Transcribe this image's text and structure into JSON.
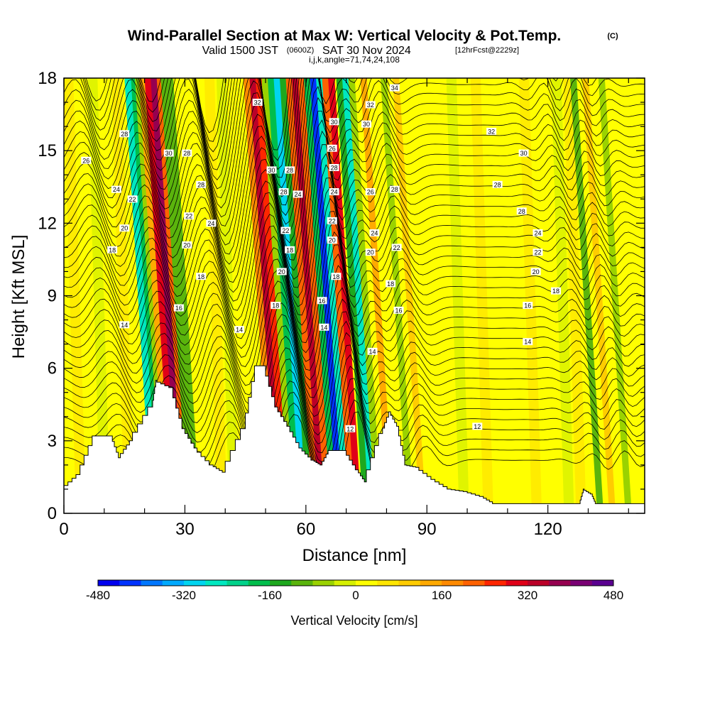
{
  "header": {
    "title": "Wind-Parallel Section at Max W: Vertical Velocity & Pot.Temp.",
    "title_mark": "(C)",
    "valid_prefix": "Valid 1500 JST",
    "valid_utc": "(0600Z)",
    "valid_date": "SAT 30 Nov 2024",
    "forecast_info": "[12hrFcst@2229z]",
    "indices": "i,j,k,angle=71,74,24,108"
  },
  "chart_data": {
    "type": "heatmap",
    "xlabel": "Distance [nm]",
    "ylabel": "Height [Kft MSL]",
    "xlim": [
      0,
      144
    ],
    "ylim": [
      0,
      18
    ],
    "x_ticks": [
      "0",
      "30",
      "60",
      "90",
      "120"
    ],
    "y_ticks": [
      "0",
      "3",
      "6",
      "9",
      "12",
      "15",
      "18"
    ],
    "colorbar": {
      "title": "Vertical Velocity [cm/s]",
      "tick_labels": [
        "-480",
        "-320",
        "-160",
        "0",
        "160",
        "320",
        "480"
      ],
      "range": [
        -480,
        480
      ],
      "colors": [
        "#0000ee",
        "#0033ff",
        "#0077ff",
        "#00aaff",
        "#00d5f0",
        "#00e8c0",
        "#00d28a",
        "#00be4c",
        "#1ea81e",
        "#5ab40c",
        "#9ad200",
        "#d6f000",
        "#ffff00",
        "#ffe600",
        "#ffcc00",
        "#ffaa00",
        "#ff8a00",
        "#ff6200",
        "#ff2600",
        "#e00018",
        "#bb0028",
        "#960050",
        "#7a0074",
        "#5a0090"
      ]
    },
    "terrain_height_kft": [
      {
        "x": 0,
        "h": 1.0
      },
      {
        "x": 4,
        "h": 1.6
      },
      {
        "x": 8,
        "h": 3.2
      },
      {
        "x": 12,
        "h": 3.2
      },
      {
        "x": 14,
        "h": 2.3
      },
      {
        "x": 17,
        "h": 3.0
      },
      {
        "x": 22,
        "h": 4.4
      },
      {
        "x": 23,
        "h": 5.5
      },
      {
        "x": 27,
        "h": 5.2
      },
      {
        "x": 30,
        "h": 3.5
      },
      {
        "x": 33,
        "h": 2.7
      },
      {
        "x": 37,
        "h": 2.0
      },
      {
        "x": 40,
        "h": 1.7
      },
      {
        "x": 45,
        "h": 3.5
      },
      {
        "x": 48,
        "h": 6.1
      },
      {
        "x": 50,
        "h": 6.1
      },
      {
        "x": 53,
        "h": 4.4
      },
      {
        "x": 56,
        "h": 3.6
      },
      {
        "x": 59,
        "h": 2.7
      },
      {
        "x": 62,
        "h": 2.2
      },
      {
        "x": 64,
        "h": 2.0
      },
      {
        "x": 66,
        "h": 2.6
      },
      {
        "x": 70,
        "h": 2.6
      },
      {
        "x": 73,
        "h": 1.8
      },
      {
        "x": 75,
        "h": 1.3
      },
      {
        "x": 79,
        "h": 3.3
      },
      {
        "x": 81,
        "h": 4.2
      },
      {
        "x": 83,
        "h": 3.6
      },
      {
        "x": 85,
        "h": 2.0
      },
      {
        "x": 88,
        "h": 1.9
      },
      {
        "x": 92,
        "h": 1.4
      },
      {
        "x": 96,
        "h": 1.0
      },
      {
        "x": 100,
        "h": 0.9
      },
      {
        "x": 104,
        "h": 0.7
      },
      {
        "x": 107,
        "h": 0.4
      },
      {
        "x": 113,
        "h": 0.4
      },
      {
        "x": 120,
        "h": 0.4
      },
      {
        "x": 128,
        "h": 0.4
      },
      {
        "x": 129,
        "h": 1.0
      },
      {
        "x": 131,
        "h": 0.8
      },
      {
        "x": 132,
        "h": 0.4
      },
      {
        "x": 144,
        "h": 0.4
      }
    ],
    "updrafts_downdrafts": [
      {
        "x": 26,
        "w": 140
      },
      {
        "x": 27.5,
        "w": 310
      },
      {
        "x": 29,
        "w": 360
      },
      {
        "x": 30.5,
        "w": 220
      },
      {
        "x": 24.5,
        "w": -80
      },
      {
        "x": 23.5,
        "w": -180
      },
      {
        "x": 22.5,
        "w": -260
      },
      {
        "x": 31.5,
        "w": -120
      },
      {
        "x": 33,
        "w": -100
      },
      {
        "x": 52,
        "w": 160
      },
      {
        "x": 53.5,
        "w": 330
      },
      {
        "x": 55,
        "w": 260
      },
      {
        "x": 56.5,
        "w": -60
      },
      {
        "x": 58,
        "w": -180
      },
      {
        "x": 59.5,
        "w": -300
      },
      {
        "x": 61,
        "w": -160
      },
      {
        "x": 62.5,
        "w": 200
      },
      {
        "x": 64,
        "w": 340
      },
      {
        "x": 65.5,
        "w": 200
      },
      {
        "x": 67,
        "w": -200
      },
      {
        "x": 68.5,
        "w": -420
      },
      {
        "x": 70,
        "w": -250
      },
      {
        "x": 71.5,
        "w": 220
      },
      {
        "x": 73,
        "w": 300
      },
      {
        "x": 75,
        "w": -140
      },
      {
        "x": 76.5,
        "w": -260
      },
      {
        "x": 78,
        "w": -80
      },
      {
        "x": 81,
        "w": 120
      },
      {
        "x": 86,
        "w": -60
      },
      {
        "x": 89,
        "w": 80
      },
      {
        "x": 133,
        "w": -120
      },
      {
        "x": 136,
        "w": 90
      },
      {
        "x": 140,
        "w": -80
      }
    ],
    "contour_labels": [
      {
        "x": 5.5,
        "y": 14.6,
        "text": "26"
      },
      {
        "x": 15,
        "y": 15.7,
        "text": "28"
      },
      {
        "x": 13,
        "y": 13.4,
        "text": "24"
      },
      {
        "x": 17,
        "y": 13.0,
        "text": "22"
      },
      {
        "x": 15,
        "y": 11.8,
        "text": "20"
      },
      {
        "x": 12,
        "y": 10.9,
        "text": "18"
      },
      {
        "x": 15,
        "y": 7.8,
        "text": "14"
      },
      {
        "x": 26,
        "y": 14.9,
        "text": "30"
      },
      {
        "x": 30.5,
        "y": 14.9,
        "text": "28"
      },
      {
        "x": 34,
        "y": 13.6,
        "text": "28"
      },
      {
        "x": 31,
        "y": 12.3,
        "text": "22"
      },
      {
        "x": 36.5,
        "y": 12.0,
        "text": "24"
      },
      {
        "x": 30.5,
        "y": 11.1,
        "text": "20"
      },
      {
        "x": 34,
        "y": 9.8,
        "text": "18"
      },
      {
        "x": 28.5,
        "y": 8.5,
        "text": "16"
      },
      {
        "x": 43.5,
        "y": 7.6,
        "text": "14"
      },
      {
        "x": 48,
        "y": 17.0,
        "text": "32"
      },
      {
        "x": 51.5,
        "y": 14.2,
        "text": "30"
      },
      {
        "x": 56,
        "y": 14.2,
        "text": "28"
      },
      {
        "x": 54.5,
        "y": 13.3,
        "text": "28"
      },
      {
        "x": 58,
        "y": 13.2,
        "text": "24"
      },
      {
        "x": 55,
        "y": 11.7,
        "text": "22"
      },
      {
        "x": 56,
        "y": 10.9,
        "text": "18"
      },
      {
        "x": 54,
        "y": 10.0,
        "text": "20"
      },
      {
        "x": 52.5,
        "y": 8.6,
        "text": "18"
      },
      {
        "x": 64,
        "y": 8.8,
        "text": "16"
      },
      {
        "x": 64.5,
        "y": 7.7,
        "text": "14"
      },
      {
        "x": 67,
        "y": 16.2,
        "text": "30"
      },
      {
        "x": 66.5,
        "y": 15.1,
        "text": "26"
      },
      {
        "x": 67,
        "y": 14.3,
        "text": "28"
      },
      {
        "x": 67,
        "y": 13.3,
        "text": "24"
      },
      {
        "x": 66.5,
        "y": 12.1,
        "text": "22"
      },
      {
        "x": 66.5,
        "y": 11.3,
        "text": "20"
      },
      {
        "x": 67.5,
        "y": 9.8,
        "text": "18"
      },
      {
        "x": 76,
        "y": 16.9,
        "text": "32"
      },
      {
        "x": 75,
        "y": 16.1,
        "text": "30"
      },
      {
        "x": 82,
        "y": 17.6,
        "text": "34"
      },
      {
        "x": 76,
        "y": 13.3,
        "text": "26"
      },
      {
        "x": 82,
        "y": 13.4,
        "text": "28"
      },
      {
        "x": 77,
        "y": 11.6,
        "text": "24"
      },
      {
        "x": 76,
        "y": 10.8,
        "text": "20"
      },
      {
        "x": 82.5,
        "y": 11.0,
        "text": "22"
      },
      {
        "x": 81,
        "y": 9.5,
        "text": "18"
      },
      {
        "x": 83,
        "y": 8.4,
        "text": "16"
      },
      {
        "x": 76.5,
        "y": 6.7,
        "text": "14"
      },
      {
        "x": 71,
        "y": 3.5,
        "text": "12"
      },
      {
        "x": 106,
        "y": 15.8,
        "text": "32"
      },
      {
        "x": 114,
        "y": 14.9,
        "text": "30"
      },
      {
        "x": 107.5,
        "y": 13.6,
        "text": "28"
      },
      {
        "x": 113.5,
        "y": 12.5,
        "text": "28"
      },
      {
        "x": 117.5,
        "y": 11.6,
        "text": "24"
      },
      {
        "x": 117.5,
        "y": 10.8,
        "text": "22"
      },
      {
        "x": 117,
        "y": 10.0,
        "text": "20"
      },
      {
        "x": 122,
        "y": 9.2,
        "text": "18"
      },
      {
        "x": 115,
        "y": 8.6,
        "text": "16"
      },
      {
        "x": 115,
        "y": 7.1,
        "text": "14"
      },
      {
        "x": 102.5,
        "y": 3.6,
        "text": "12"
      }
    ]
  }
}
